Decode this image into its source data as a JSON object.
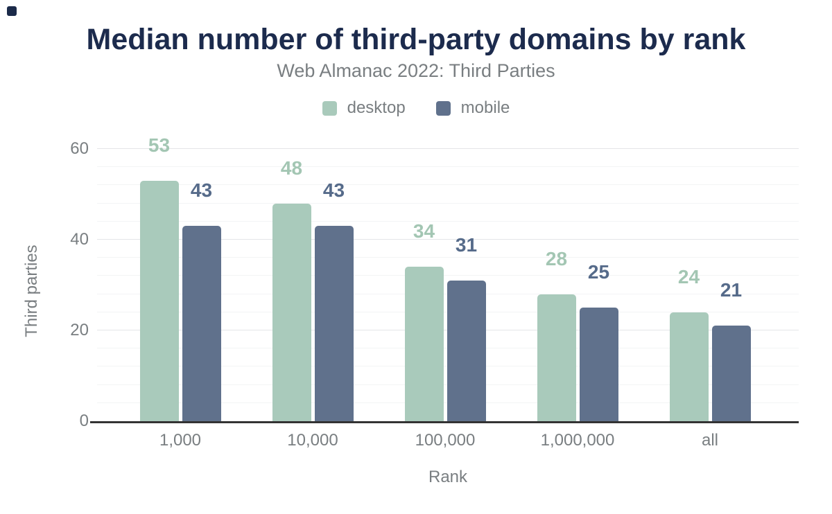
{
  "header": {
    "title": "Median number of third-party domains by rank",
    "subtitle": "Web Almanac 2022: Third Parties"
  },
  "legend": [
    {
      "label": "desktop",
      "color": "#a9cabb"
    },
    {
      "label": "mobile",
      "color": "#60718c"
    }
  ],
  "chart_data": {
    "type": "bar",
    "title": "Median number of third-party domains by rank",
    "subtitle": "Web Almanac 2022: Third Parties",
    "categories": [
      "1,000",
      "10,000",
      "100,000",
      "1,000,000",
      "all"
    ],
    "series": [
      {
        "name": "desktop",
        "color": "#a9cabb",
        "label_color": "#a3c6b3",
        "values": [
          53,
          48,
          34,
          28,
          24
        ]
      },
      {
        "name": "mobile",
        "color": "#60718c",
        "label_color": "#566b8a",
        "values": [
          43,
          43,
          31,
          25,
          21
        ]
      }
    ],
    "xlabel": "Rank",
    "ylabel": "Third parties",
    "ylim": [
      0,
      60
    ],
    "yticks": [
      0,
      20,
      40,
      60
    ],
    "minor_grid_step": 4,
    "grid": "horizontal",
    "legend_position": "top",
    "value_labels": true
  },
  "colors": {
    "title_text": "#1c2b4d",
    "axis_text": "#797e81",
    "grid_minor": "#f3f4f5",
    "grid_major": "#e4e5e8",
    "axis_line": "#333333",
    "background": "#ffffff",
    "corner_mark": "#1b2a49"
  }
}
